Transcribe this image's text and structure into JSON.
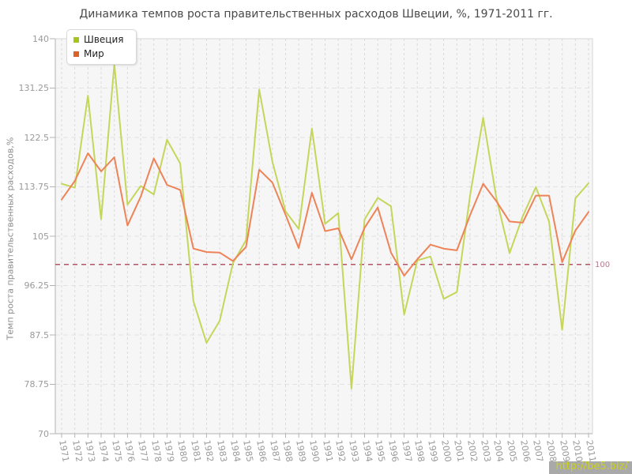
{
  "title": "Динамика темпов роста правительственных расходов Швеции, %, 1971-2011 гг.",
  "watermark": "http://be5.biz/",
  "chart_data": {
    "type": "line",
    "title": "Динамика темпов роста правительственных расходов Швеции, %, 1971-2011 гг.",
    "ylabel": "Темп роста правительственных расходов,%",
    "ylim": [
      70,
      140
    ],
    "yticks": [
      70,
      78.75,
      87.5,
      96.25,
      105,
      113.75,
      122.5,
      131.25,
      140
    ],
    "x": [
      1971,
      1972,
      1973,
      1974,
      1975,
      1976,
      1977,
      1978,
      1979,
      1980,
      1981,
      1982,
      1983,
      1984,
      1985,
      1986,
      1987,
      1988,
      1989,
      1990,
      1991,
      1992,
      1993,
      1994,
      1995,
      1996,
      1997,
      1998,
      1999,
      2000,
      2001,
      2002,
      2003,
      2004,
      2005,
      2006,
      2007,
      2008,
      2009,
      2010,
      2011
    ],
    "series": [
      {
        "name": "Швеция",
        "color": "#c5d65a",
        "marker_color": "#a6c41e",
        "values": [
          114.3,
          113.6,
          129.9,
          108.0,
          135.5,
          110.6,
          113.9,
          112.4,
          122.1,
          117.9,
          93.5,
          86.1,
          90.0,
          100.2,
          104.3,
          131.0,
          118.2,
          109.4,
          106.3,
          124.1,
          107.2,
          109.1,
          78.0,
          108.0,
          111.8,
          110.3,
          91.1,
          100.7,
          101.4,
          93.9,
          95.1,
          112.1,
          126.0,
          111.8,
          102.0,
          108.5,
          113.7,
          107.6,
          88.4,
          111.7,
          114.4
        ]
      },
      {
        "name": "Мир",
        "color": "#ee8358",
        "marker_color": "#dc6228",
        "values": [
          111.5,
          114.8,
          119.7,
          116.5,
          119.0,
          106.9,
          112.0,
          118.8,
          114.1,
          113.2,
          102.8,
          102.2,
          102.1,
          100.6,
          103.1,
          116.8,
          114.5,
          108.8,
          102.9,
          112.7,
          105.9,
          106.4,
          100.9,
          106.5,
          110.1,
          102.1,
          98.0,
          100.9,
          103.5,
          102.8,
          102.5,
          108.7,
          114.3,
          111.2,
          107.6,
          107.4,
          112.2,
          112.2,
          100.4,
          106.0,
          109.3
        ]
      }
    ],
    "refline": {
      "value": 100,
      "label": "100",
      "color": "#b25566",
      "label_color": "#b5798b"
    },
    "legend_position": "top-left",
    "grid": true
  }
}
